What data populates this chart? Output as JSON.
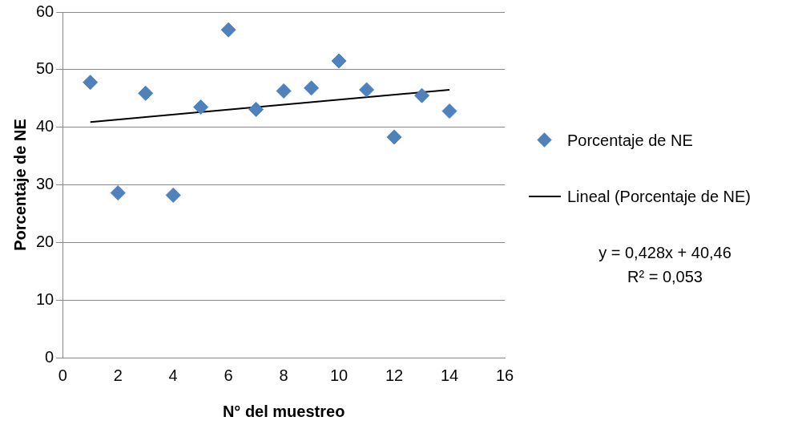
{
  "chart_data": {
    "type": "scatter",
    "xlabel": "N° del muestreo",
    "ylabel": "Porcentaje de NE",
    "x": [
      1,
      2,
      3,
      4,
      5,
      6,
      7,
      8,
      9,
      10,
      11,
      12,
      13,
      14
    ],
    "series": [
      {
        "name": "Porcentaje de NE",
        "color": "#4f81bd",
        "values": [
          47.8,
          28.6,
          45.9,
          28.2,
          43.5,
          56.9,
          43.1,
          46.3,
          46.8,
          51.5,
          46.5,
          38.3,
          45.5,
          42.8
        ]
      },
      {
        "name": "Lineal (Porcentaje de NE)",
        "type": "line",
        "color": "#000000",
        "x": [
          1,
          14
        ],
        "values": [
          40.9,
          46.5
        ],
        "marker": "none"
      }
    ],
    "xlim": [
      0,
      16
    ],
    "xticks": [
      0,
      2,
      4,
      6,
      8,
      10,
      12,
      14,
      16
    ],
    "ylim": [
      0,
      60
    ],
    "yticks": [
      0,
      10,
      20,
      30,
      40,
      50,
      60
    ],
    "grid": "y",
    "legend": "right",
    "marker": "diamond",
    "annotations": [
      "y = 0,428x + 40,46",
      "R² = 0,053"
    ]
  }
}
